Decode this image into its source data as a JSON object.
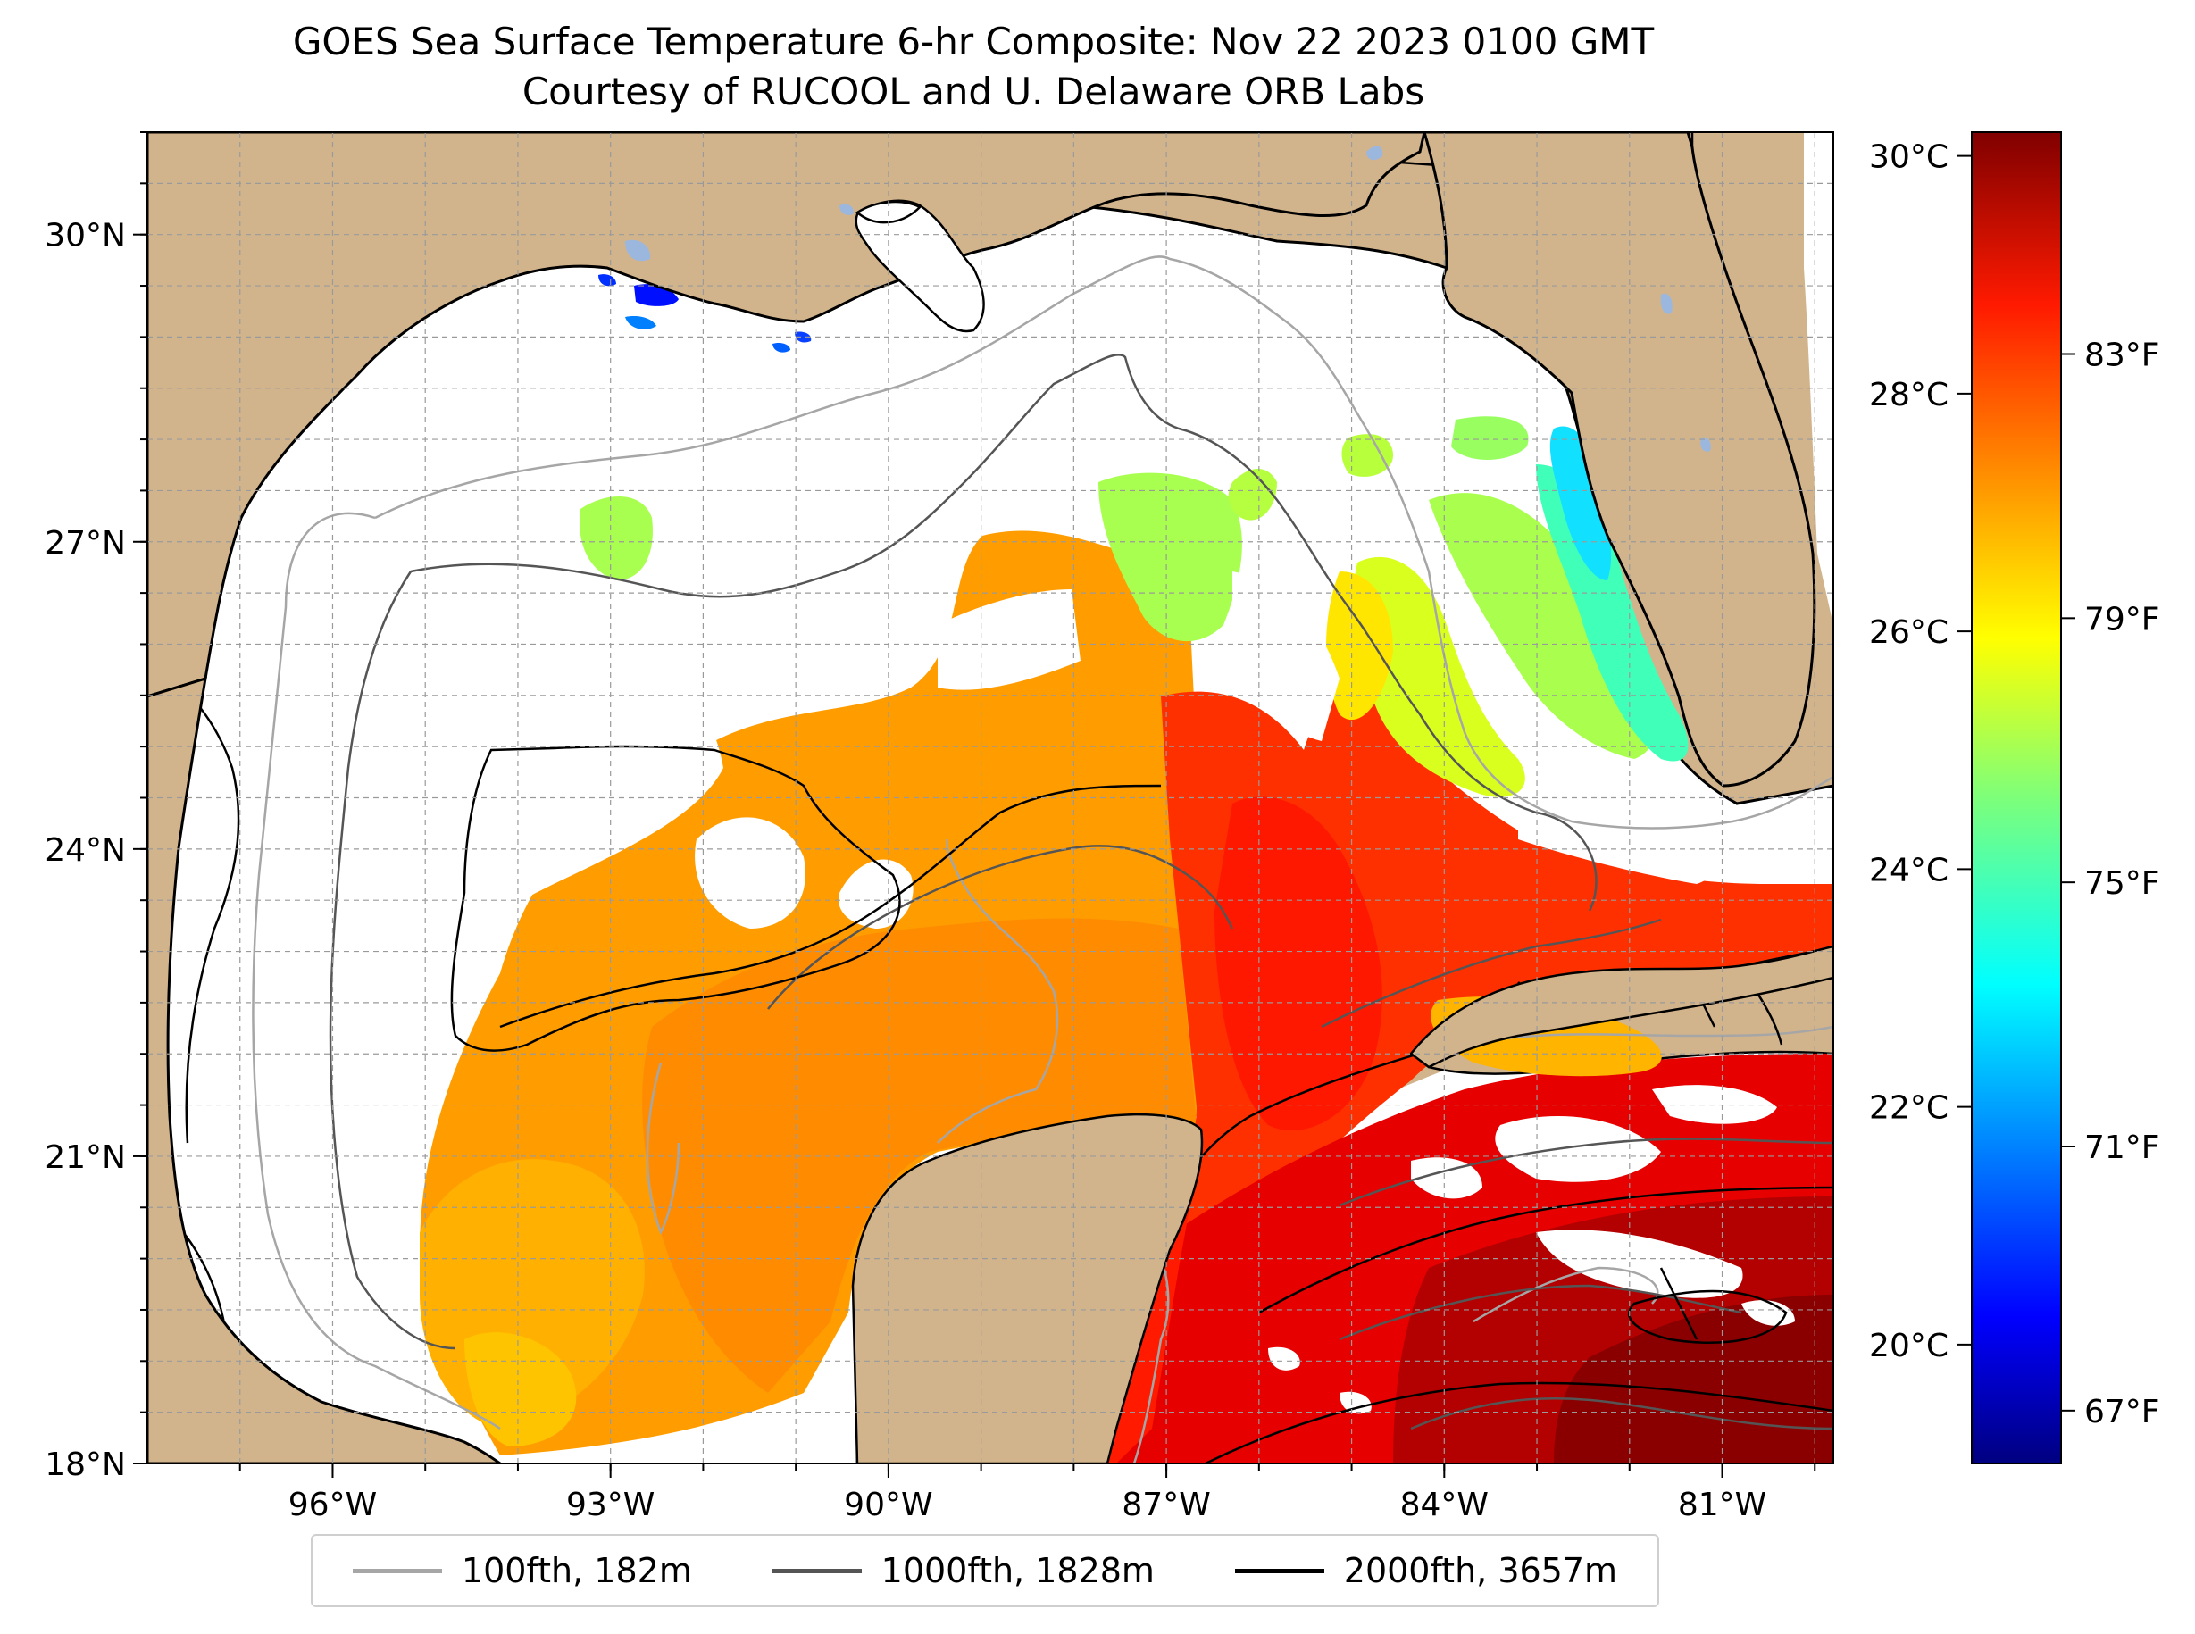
{
  "title": "GOES Sea Surface Temperature 6-hr Composite: Nov 22 2023 0100 GMT",
  "subtitle": "Courtesy of RUCOOL and U. Delaware ORB Labs",
  "map": {
    "lon_range": [
      -98.0,
      -79.8
    ],
    "lat_range": [
      18.0,
      31.0
    ],
    "lat_ticks": [
      {
        "value": 18,
        "label": "18°N"
      },
      {
        "value": 21,
        "label": "21°N"
      },
      {
        "value": 24,
        "label": "24°N"
      },
      {
        "value": 27,
        "label": "27°N"
      },
      {
        "value": 30,
        "label": "30°N"
      }
    ],
    "lon_ticks": [
      {
        "value": -96,
        "label": "96°W"
      },
      {
        "value": -93,
        "label": "93°W"
      },
      {
        "value": -90,
        "label": "90°W"
      },
      {
        "value": -87,
        "label": "87°W"
      },
      {
        "value": -84,
        "label": "84°W"
      },
      {
        "value": -81,
        "label": "81°W"
      }
    ],
    "land_color": "#d2b48c",
    "nodata_color": "#ffffff",
    "grid": true
  },
  "colorbar": {
    "celsius_range": [
      19.0,
      30.2
    ],
    "celsius_ticks": [
      {
        "value": 20,
        "label": "20°C"
      },
      {
        "value": 22,
        "label": "22°C"
      },
      {
        "value": 24,
        "label": "24°C"
      },
      {
        "value": 26,
        "label": "26°C"
      },
      {
        "value": 28,
        "label": "28°C"
      },
      {
        "value": 30,
        "label": "30°C"
      }
    ],
    "fahrenheit_ticks": [
      {
        "value": 67,
        "label": "67°F"
      },
      {
        "value": 71,
        "label": "71°F"
      },
      {
        "value": 75,
        "label": "75°F"
      },
      {
        "value": 79,
        "label": "79°F"
      },
      {
        "value": 83,
        "label": "83°F"
      }
    ],
    "colormap": "jet"
  },
  "legend": [
    {
      "label": "100fth, 182m",
      "color": "#a6a6a6"
    },
    {
      "label": "1000fth, 1828m",
      "color": "#555555"
    },
    {
      "label": "2000fth, 3657m",
      "color": "#000000"
    }
  ]
}
